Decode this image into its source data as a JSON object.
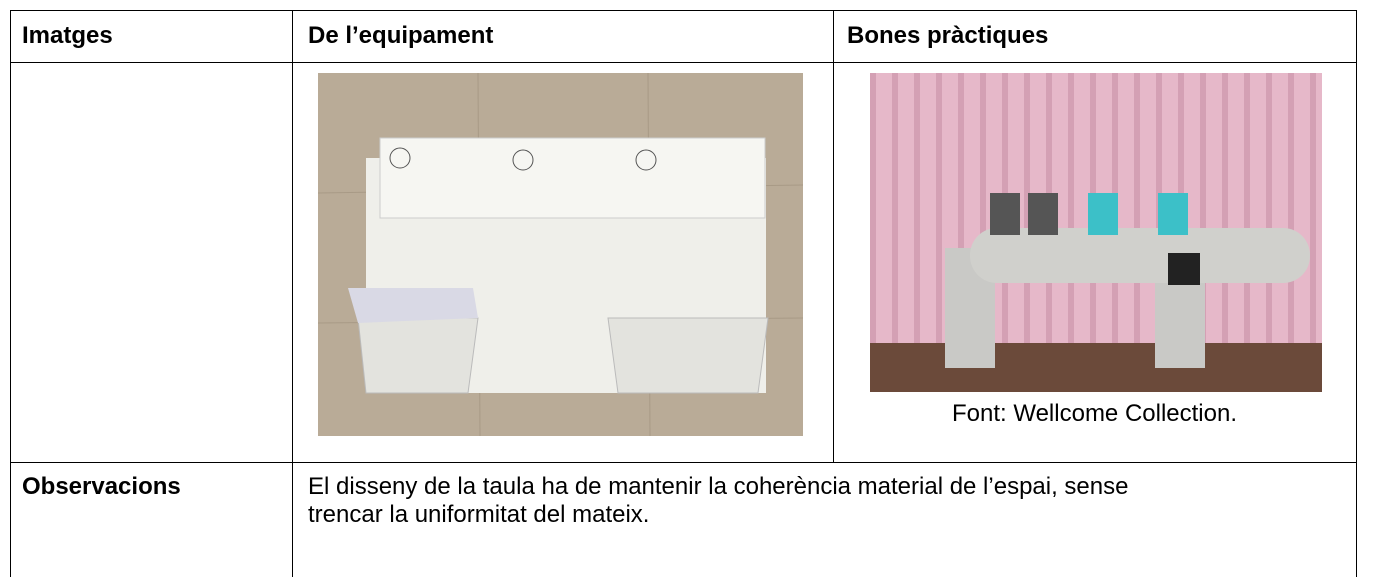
{
  "table": {
    "header": [
      "Imatges",
      "De l’equipament",
      "Bones pràctiques"
    ],
    "caption": "Font: Wellcome Collection.",
    "rows": [
      [
        "Observacions",
        "El disseny de la taula ha de mantenir la coherència material de l’espai, sense trencar la uniformitat del mateix."
      ]
    ]
  }
}
